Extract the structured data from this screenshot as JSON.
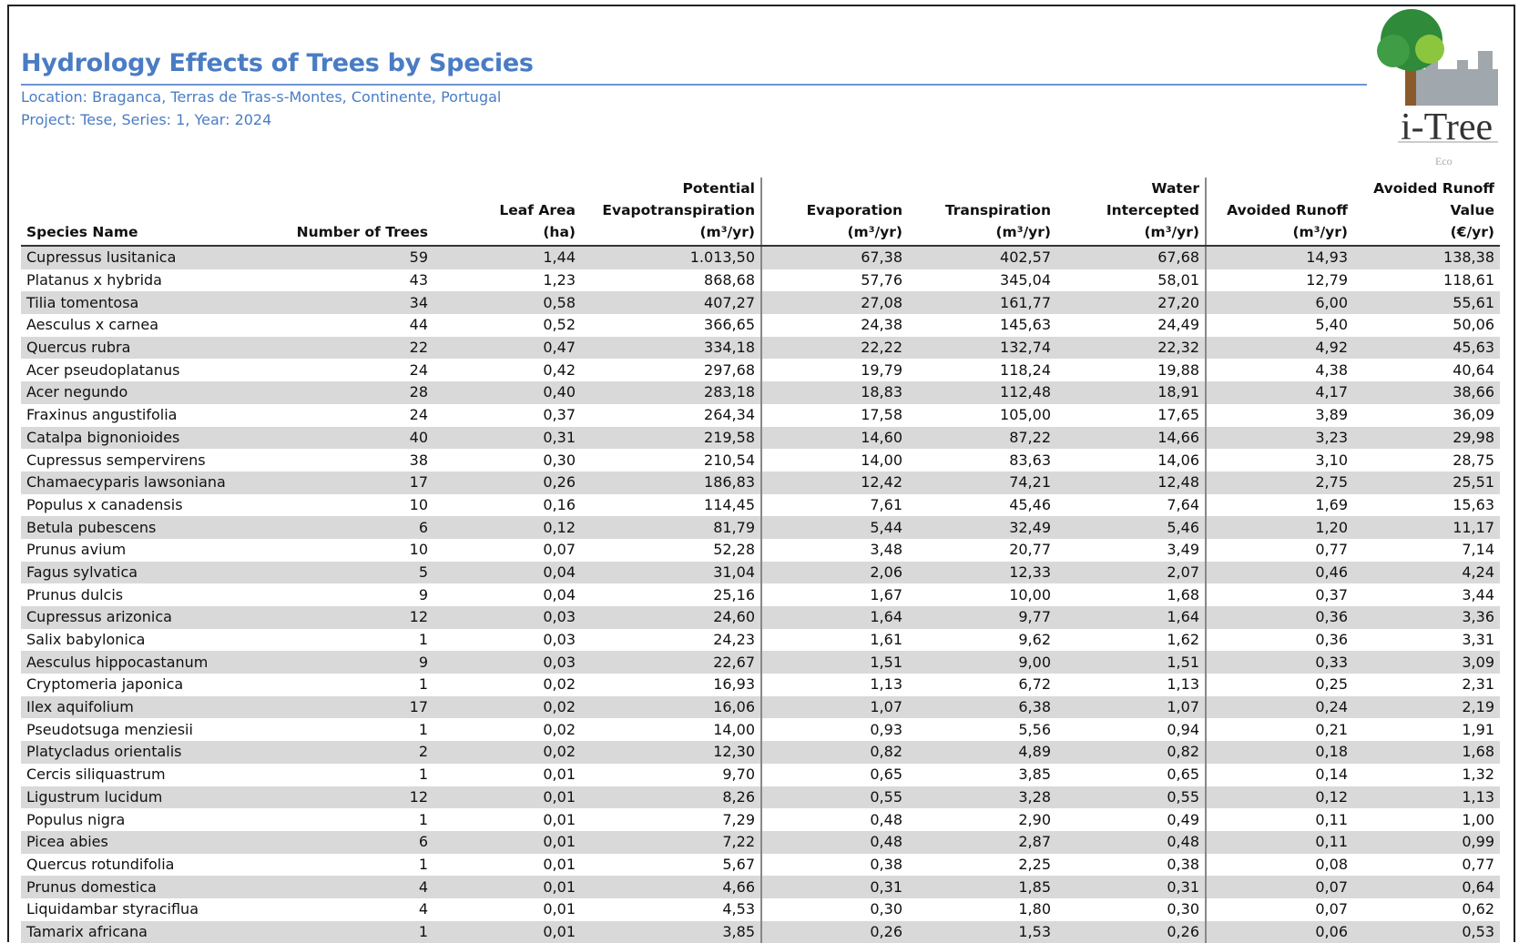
{
  "header": {
    "title": "Hydrology Effects of Trees by Species",
    "location": "Location: Braganca, Terras de Tras-s-Montes, Continente, Portugal",
    "project": "Project: Tese, Series: 1, Year: 2024"
  },
  "logo": {
    "name": "i-Tree",
    "sub": "Eco"
  },
  "table": {
    "columns": [
      {
        "label": "Species Name",
        "unit": ""
      },
      {
        "label": "Number of Trees",
        "unit": ""
      },
      {
        "label": "Leaf Area",
        "unit": "(ha)"
      },
      {
        "label": "Potential Evapotranspiration",
        "unit": "(m³/yr)"
      },
      {
        "label": "Evaporation",
        "unit": "(m³/yr)"
      },
      {
        "label": "Transpiration",
        "unit": "(m³/yr)"
      },
      {
        "label": "Water Intercepted",
        "unit": "(m³/yr)"
      },
      {
        "label": "Avoided Runoff",
        "unit": "(m³/yr)"
      },
      {
        "label": "Avoided Runoff Value",
        "unit": "(€/yr)"
      }
    ],
    "rows": [
      [
        "Cupressus lusitanica",
        "59",
        "1,44",
        "1.013,50",
        "67,38",
        "402,57",
        "67,68",
        "14,93",
        "138,38"
      ],
      [
        "Platanus x hybrida",
        "43",
        "1,23",
        "868,68",
        "57,76",
        "345,04",
        "58,01",
        "12,79",
        "118,61"
      ],
      [
        "Tilia tomentosa",
        "34",
        "0,58",
        "407,27",
        "27,08",
        "161,77",
        "27,20",
        "6,00",
        "55,61"
      ],
      [
        "Aesculus x carnea",
        "44",
        "0,52",
        "366,65",
        "24,38",
        "145,63",
        "24,49",
        "5,40",
        "50,06"
      ],
      [
        "Quercus rubra",
        "22",
        "0,47",
        "334,18",
        "22,22",
        "132,74",
        "22,32",
        "4,92",
        "45,63"
      ],
      [
        "Acer pseudoplatanus",
        "24",
        "0,42",
        "297,68",
        "19,79",
        "118,24",
        "19,88",
        "4,38",
        "40,64"
      ],
      [
        "Acer negundo",
        "28",
        "0,40",
        "283,18",
        "18,83",
        "112,48",
        "18,91",
        "4,17",
        "38,66"
      ],
      [
        "Fraxinus angustifolia",
        "24",
        "0,37",
        "264,34",
        "17,58",
        "105,00",
        "17,65",
        "3,89",
        "36,09"
      ],
      [
        "Catalpa bignonioides",
        "40",
        "0,31",
        "219,58",
        "14,60",
        "87,22",
        "14,66",
        "3,23",
        "29,98"
      ],
      [
        "Cupressus sempervirens",
        "38",
        "0,30",
        "210,54",
        "14,00",
        "83,63",
        "14,06",
        "3,10",
        "28,75"
      ],
      [
        "Chamaecyparis lawsoniana",
        "17",
        "0,26",
        "186,83",
        "12,42",
        "74,21",
        "12,48",
        "2,75",
        "25,51"
      ],
      [
        "Populus x canadensis",
        "10",
        "0,16",
        "114,45",
        "7,61",
        "45,46",
        "7,64",
        "1,69",
        "15,63"
      ],
      [
        "Betula pubescens",
        "6",
        "0,12",
        "81,79",
        "5,44",
        "32,49",
        "5,46",
        "1,20",
        "11,17"
      ],
      [
        "Prunus avium",
        "10",
        "0,07",
        "52,28",
        "3,48",
        "20,77",
        "3,49",
        "0,77",
        "7,14"
      ],
      [
        "Fagus sylvatica",
        "5",
        "0,04",
        "31,04",
        "2,06",
        "12,33",
        "2,07",
        "0,46",
        "4,24"
      ],
      [
        "Prunus dulcis",
        "9",
        "0,04",
        "25,16",
        "1,67",
        "10,00",
        "1,68",
        "0,37",
        "3,44"
      ],
      [
        "Cupressus arizonica",
        "12",
        "0,03",
        "24,60",
        "1,64",
        "9,77",
        "1,64",
        "0,36",
        "3,36"
      ],
      [
        "Salix babylonica",
        "1",
        "0,03",
        "24,23",
        "1,61",
        "9,62",
        "1,62",
        "0,36",
        "3,31"
      ],
      [
        "Aesculus hippocastanum",
        "9",
        "0,03",
        "22,67",
        "1,51",
        "9,00",
        "1,51",
        "0,33",
        "3,09"
      ],
      [
        "Cryptomeria japonica",
        "1",
        "0,02",
        "16,93",
        "1,13",
        "6,72",
        "1,13",
        "0,25",
        "2,31"
      ],
      [
        "Ilex aquifolium",
        "17",
        "0,02",
        "16,06",
        "1,07",
        "6,38",
        "1,07",
        "0,24",
        "2,19"
      ],
      [
        "Pseudotsuga menziesii",
        "1",
        "0,02",
        "14,00",
        "0,93",
        "5,56",
        "0,94",
        "0,21",
        "1,91"
      ],
      [
        "Platycladus orientalis",
        "2",
        "0,02",
        "12,30",
        "0,82",
        "4,89",
        "0,82",
        "0,18",
        "1,68"
      ],
      [
        "Cercis siliquastrum",
        "1",
        "0,01",
        "9,70",
        "0,65",
        "3,85",
        "0,65",
        "0,14",
        "1,32"
      ],
      [
        "Ligustrum lucidum",
        "12",
        "0,01",
        "8,26",
        "0,55",
        "3,28",
        "0,55",
        "0,12",
        "1,13"
      ],
      [
        "Populus nigra",
        "1",
        "0,01",
        "7,29",
        "0,48",
        "2,90",
        "0,49",
        "0,11",
        "1,00"
      ],
      [
        "Picea abies",
        "6",
        "0,01",
        "7,22",
        "0,48",
        "2,87",
        "0,48",
        "0,11",
        "0,99"
      ],
      [
        "Quercus rotundifolia",
        "1",
        "0,01",
        "5,67",
        "0,38",
        "2,25",
        "0,38",
        "0,08",
        "0,77"
      ],
      [
        "Prunus domestica",
        "4",
        "0,01",
        "4,66",
        "0,31",
        "1,85",
        "0,31",
        "0,07",
        "0,64"
      ],
      [
        "Liquidambar styraciflua",
        "4",
        "0,01",
        "4,53",
        "0,30",
        "1,80",
        "0,30",
        "0,07",
        "0,62"
      ],
      [
        "Tamarix africana",
        "1",
        "0,01",
        "3,85",
        "0,26",
        "1,53",
        "0,26",
        "0,06",
        "0,53"
      ]
    ]
  }
}
